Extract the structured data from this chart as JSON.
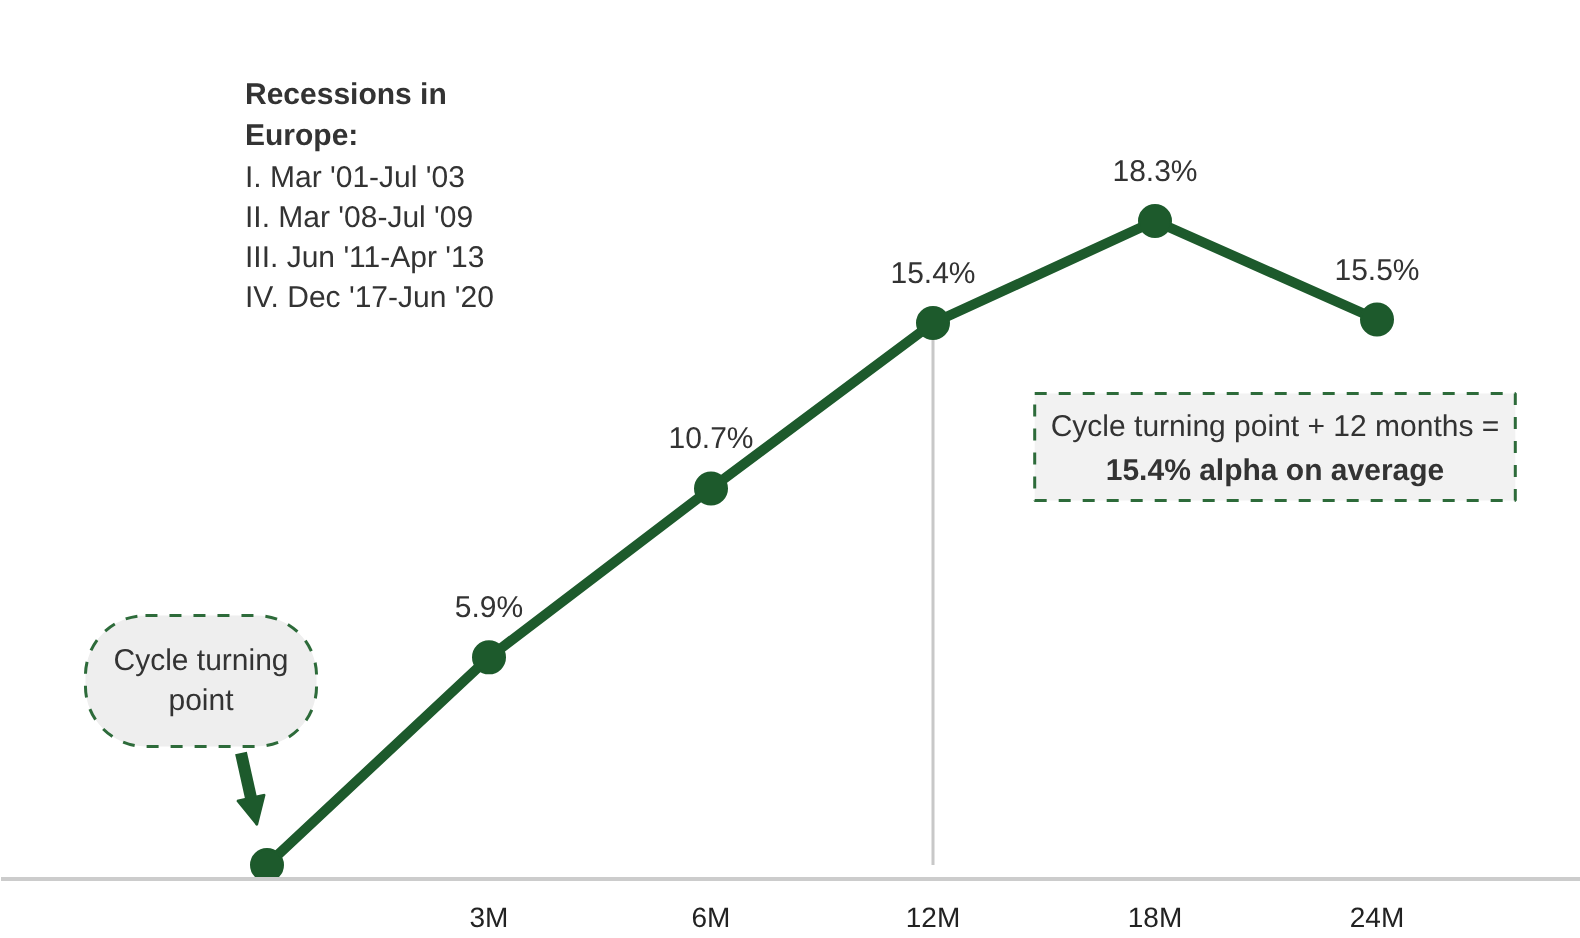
{
  "chart_data": {
    "type": "line",
    "categories": [
      null,
      "3M",
      "6M",
      "12M",
      "18M",
      "24M"
    ],
    "series": [
      {
        "color": "#1d5a2c",
        "values": [
          0,
          5.9,
          10.7,
          15.4,
          18.3,
          15.5
        ],
        "value_labels": [
          null,
          "5.9%",
          "10.7%",
          "15.4%",
          "18.3%",
          "15.5%"
        ]
      }
    ],
    "tick_labels": "x",
    "marker": "circle",
    "line_style": "solid",
    "grid": false,
    "ref_lines": [
      {
        "axis": "x",
        "value": "12M",
        "color": "#c8c8c8"
      }
    ],
    "annotations": [
      "Recessions in Europe:",
      "I.   Mar '01-Jul '03",
      "II.  Mar '08-Jul '09",
      "III. Jun '11-Apr '13",
      "IV.  Dec '17-Jun '20",
      "Cycle turning point",
      "Cycle turning point + 12 months =",
      "15.4% alpha on average"
    ]
  }
}
